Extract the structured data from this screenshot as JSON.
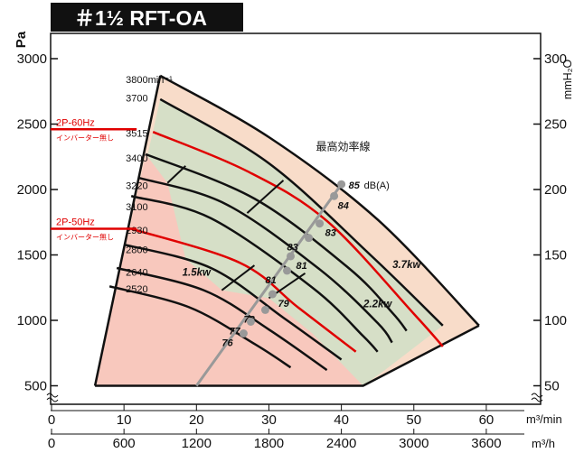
{
  "chart_data": {
    "type": "line",
    "title": "＃1½ RFT-OA",
    "y_left_label": "Pa",
    "y_right_label": "mmH₂O",
    "x1_unit": "m³/min",
    "x2_unit": "m³/h",
    "x1_ticks": [
      "0",
      "10",
      "20",
      "30",
      "40",
      "50",
      "60"
    ],
    "x2_ticks": [
      "0",
      "600",
      "1200",
      "1800",
      "2400",
      "3000",
      "3600"
    ],
    "y_left_ticks": [
      "500",
      "1000",
      "1500",
      "2000",
      "2500",
      "3000"
    ],
    "y_right_ticks": [
      "50",
      "100",
      "150",
      "200",
      "250",
      "300"
    ],
    "ylim": [
      450,
      3050
    ],
    "xlim": [
      0,
      62
    ],
    "speed_labels": [
      {
        "text": "3800min⁻¹",
        "y": 2840
      },
      {
        "text": "3700",
        "y": 2700
      },
      {
        "text": "3515",
        "y": 2430
      },
      {
        "text": "3400",
        "y": 2240
      },
      {
        "text": "3220",
        "y": 2030
      },
      {
        "text": "3100",
        "y": 1870
      },
      {
        "text": "2930",
        "y": 1690
      },
      {
        "text": "2800",
        "y": 1540
      },
      {
        "text": "2640",
        "y": 1370
      },
      {
        "text": "2520",
        "y": 1240
      }
    ],
    "speed_curves": [
      {
        "points": [
          [
            15,
            2870
          ],
          [
            30,
            2400
          ],
          [
            45,
            1770
          ],
          [
            59,
            960
          ]
        ],
        "highlight": false
      },
      {
        "points": [
          [
            15,
            2690
          ],
          [
            30,
            2200
          ],
          [
            44,
            1500
          ],
          [
            54,
            960
          ]
        ],
        "highlight": false
      },
      {
        "points": [
          [
            14,
            2440
          ],
          [
            27,
            2140
          ],
          [
            38,
            1760
          ],
          [
            50,
            1050
          ],
          [
            54,
            800
          ]
        ],
        "highlight": true
      },
      {
        "points": [
          [
            13,
            2270
          ],
          [
            28,
            1930
          ],
          [
            41,
            1400
          ],
          [
            47,
            1060
          ],
          [
            49,
            920
          ]
        ],
        "highlight": false
      },
      {
        "points": [
          [
            12,
            2090
          ],
          [
            24,
            1890
          ],
          [
            37,
            1390
          ],
          [
            45,
            980
          ],
          [
            47,
            830
          ]
        ],
        "highlight": false
      },
      {
        "points": [
          [
            11,
            1950
          ],
          [
            22,
            1780
          ],
          [
            36,
            1250
          ],
          [
            43,
            880
          ],
          [
            45,
            760
          ]
        ],
        "highlight": false
      },
      {
        "points": [
          [
            11,
            1700
          ],
          [
            26,
            1440
          ],
          [
            34,
            1100
          ],
          [
            42,
            760
          ]
        ],
        "highlight": true
      },
      {
        "points": [
          [
            10,
            1580
          ],
          [
            22,
            1400
          ],
          [
            32,
            1020
          ],
          [
            40,
            700
          ]
        ],
        "highlight": false
      },
      {
        "points": [
          [
            9,
            1400
          ],
          [
            21,
            1230
          ],
          [
            30,
            930
          ],
          [
            38,
            620
          ]
        ],
        "highlight": false
      },
      {
        "points": [
          [
            8,
            1260
          ],
          [
            19,
            1100
          ],
          [
            28,
            820
          ],
          [
            33,
            640
          ]
        ],
        "highlight": false
      }
    ],
    "region_boundaries": [
      {
        "points": [
          [
            16,
            2050
          ],
          [
            18.5,
            2180
          ]
        ]
      },
      {
        "points": [
          [
            27,
            1820
          ],
          [
            32,
            2070
          ]
        ]
      },
      {
        "points": [
          [
            23.5,
            1230
          ],
          [
            28,
            1420
          ]
        ]
      },
      {
        "points": [
          [
            30,
            1170
          ],
          [
            35,
            1360
          ]
        ]
      }
    ],
    "efficiency_line": {
      "label": "最高効率線",
      "points": [
        [
          20,
          500
        ],
        [
          40,
          2040
        ]
      ]
    },
    "db_points": [
      {
        "x": 40,
        "y": 2040,
        "label": "85",
        "unit": "dB(A)"
      },
      {
        "x": 39,
        "y": 1950,
        "label": "84"
      },
      {
        "x": 37,
        "y": 1740,
        "label": "83"
      },
      {
        "x": 35.5,
        "y": 1630,
        "label": "83"
      },
      {
        "x": 33,
        "y": 1490,
        "label": "81"
      },
      {
        "x": 32.5,
        "y": 1380,
        "label": "81"
      },
      {
        "x": 30.5,
        "y": 1200,
        "label": "79"
      },
      {
        "x": 29.5,
        "y": 1080,
        "label": "78"
      },
      {
        "x": 27.5,
        "y": 990,
        "label": "77"
      },
      {
        "x": 26.5,
        "y": 900,
        "label": "76"
      }
    ],
    "kw_labels": [
      {
        "text": "1.5kw",
        "x": 20,
        "y": 1340
      },
      {
        "text": "2.2kw",
        "x": 45,
        "y": 1100
      },
      {
        "text": "3.7kw",
        "x": 49,
        "y": 1400
      }
    ],
    "operating_points": [
      {
        "label": "2P-60Hz",
        "sub": "インバーター無し",
        "y": 2460
      },
      {
        "label": "2P-50Hz",
        "sub": "インバーター無し",
        "y": 1700
      }
    ],
    "region_colors": {
      "1.5kw": "#f8c8bd",
      "2.2kw": "#d6dfc7",
      "3.7kw": "#f8dcc9",
      "curve": "#111111",
      "highlight": "#e00000",
      "efficiency": "#999999"
    }
  }
}
